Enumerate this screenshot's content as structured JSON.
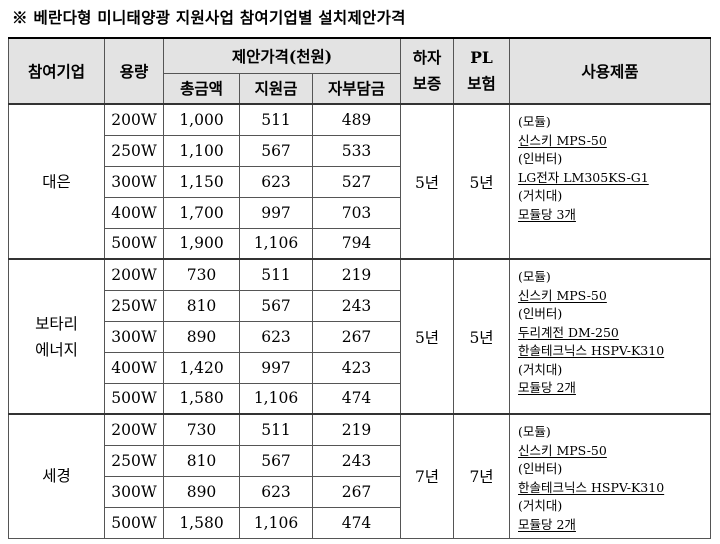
{
  "title": "※ 베란다형 미니태양광 지원사업 참여기업별 설치제안가격",
  "headers": {
    "company": "참여기업",
    "capacity": "용량",
    "price_group": "제안가격(천원)",
    "total": "총금액",
    "subsidy": "지원금",
    "self_pay": "자부담금",
    "warranty_line1": "하자",
    "warranty_line2": "보증",
    "pl_line1": "PL",
    "pl_line2": "보험",
    "products": "사용제품"
  },
  "companies": [
    {
      "name_lines": [
        "대은"
      ],
      "warranty": "5년",
      "pl": "5년",
      "rows": [
        {
          "capacity": "200W",
          "total": "1,000",
          "subsidy": "511",
          "self_pay": "489"
        },
        {
          "capacity": "250W",
          "total": "1,100",
          "subsidy": "567",
          "self_pay": "533"
        },
        {
          "capacity": "300W",
          "total": "1,150",
          "subsidy": "623",
          "self_pay": "527"
        },
        {
          "capacity": "400W",
          "total": "1,700",
          "subsidy": "997",
          "self_pay": "703"
        },
        {
          "capacity": "500W",
          "total": "1,900",
          "subsidy": "1,106",
          "self_pay": "794"
        }
      ],
      "products": [
        "(모듈)",
        "신스키 MPS-50",
        "(인버터)",
        "LG전자 LM305KS-G1",
        "(거치대)",
        "모듈당 3개"
      ]
    },
    {
      "name_lines": [
        "보타리",
        "에너지"
      ],
      "warranty": "5년",
      "pl": "5년",
      "rows": [
        {
          "capacity": "200W",
          "total": "730",
          "subsidy": "511",
          "self_pay": "219"
        },
        {
          "capacity": "250W",
          "total": "810",
          "subsidy": "567",
          "self_pay": "243"
        },
        {
          "capacity": "300W",
          "total": "890",
          "subsidy": "623",
          "self_pay": "267"
        },
        {
          "capacity": "400W",
          "total": "1,420",
          "subsidy": "997",
          "self_pay": "423"
        },
        {
          "capacity": "500W",
          "total": "1,580",
          "subsidy": "1,106",
          "self_pay": "474"
        }
      ],
      "products": [
        "(모듈)",
        "신스키 MPS-50",
        "(인버터)",
        "두리계전 DM-250",
        "한솔테크닉스 HSPV-K310",
        "(거치대)",
        "모듈당 2개"
      ]
    },
    {
      "name_lines": [
        "세경"
      ],
      "warranty": "7년",
      "pl": "7년",
      "rows": [
        {
          "capacity": "200W",
          "total": "730",
          "subsidy": "511",
          "self_pay": "219"
        },
        {
          "capacity": "250W",
          "total": "810",
          "subsidy": "567",
          "self_pay": "243"
        },
        {
          "capacity": "300W",
          "total": "890",
          "subsidy": "623",
          "self_pay": "267"
        },
        {
          "capacity": "500W",
          "total": "1,580",
          "subsidy": "1,106",
          "self_pay": "474"
        }
      ],
      "products": [
        "(모듈)",
        "신스키 MPS-50",
        "(인버터)",
        "한솔테크닉스 HSPV-K310",
        "(거치대)",
        "모듈당 2개"
      ]
    }
  ]
}
